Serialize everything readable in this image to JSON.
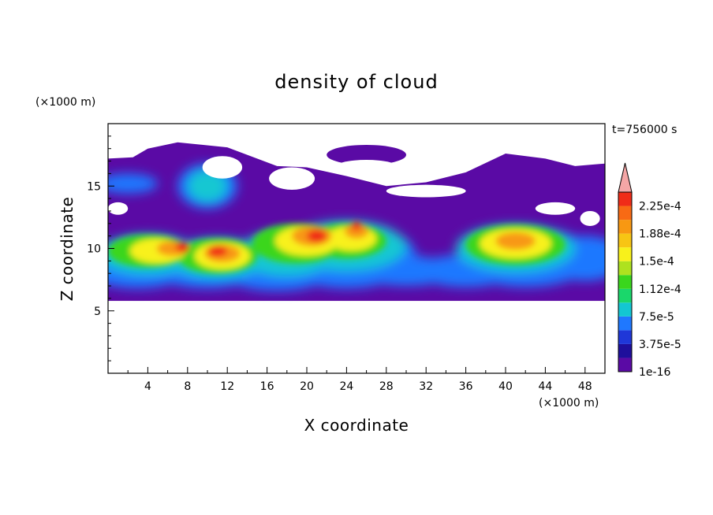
{
  "chart_data": {
    "type": "heatmap",
    "title": "density of cloud",
    "xlabel": "X coordinate",
    "ylabel": "Z coordinate",
    "x_unit": "(×1000 m)",
    "y_unit": "(×1000 m)",
    "time_label": "t=756000 s",
    "xlim": [
      0,
      50
    ],
    "ylim": [
      0,
      20
    ],
    "x_ticks": [
      "4",
      "8",
      "12",
      "16",
      "20",
      "24",
      "28",
      "32",
      "36",
      "40",
      "44",
      "48"
    ],
    "y_ticks": [
      "5",
      "10",
      "15"
    ],
    "colorbar_labels": [
      "1e-16",
      "3.75e-5",
      "7.5e-5",
      "1.12e-4",
      "1.5e-4",
      "1.88e-4",
      "2.25e-4"
    ],
    "colorbar_colors": [
      "#5a0aa5",
      "#1e0f9c",
      "#1f37d8",
      "#1f78ff",
      "#13c7d2",
      "#1ad76b",
      "#3ad61d",
      "#aee21f",
      "#f8f11b",
      "#f7c514",
      "#f89812",
      "#f86a14",
      "#f02c18",
      "#f4a6a6"
    ],
    "colorbar_extend": "max",
    "regions": {
      "cloud_layer": {
        "x": [
          0,
          50
        ],
        "z": [
          5.8,
          13.5
        ],
        "level": "low"
      },
      "upper_layer": {
        "x": [
          0,
          50
        ],
        "z": [
          13.5,
          18.5
        ],
        "level": "low"
      },
      "core_left": {
        "x_center": 5,
        "z_center": 9.8,
        "peak": "1.88e-4"
      },
      "core_center_left": {
        "x_center": 11.5,
        "z_center": 9.5,
        "peak": "2.25e-4"
      },
      "core_center": {
        "x_center": 21,
        "z_center": 10.8,
        "peak": "2.25e-4"
      },
      "core_right": {
        "x_center": 41,
        "z_center": 10.4,
        "peak": "1.88e-4"
      },
      "turret": {
        "x_center": 10,
        "z_center": 15,
        "peak": "1.12e-4"
      }
    }
  }
}
